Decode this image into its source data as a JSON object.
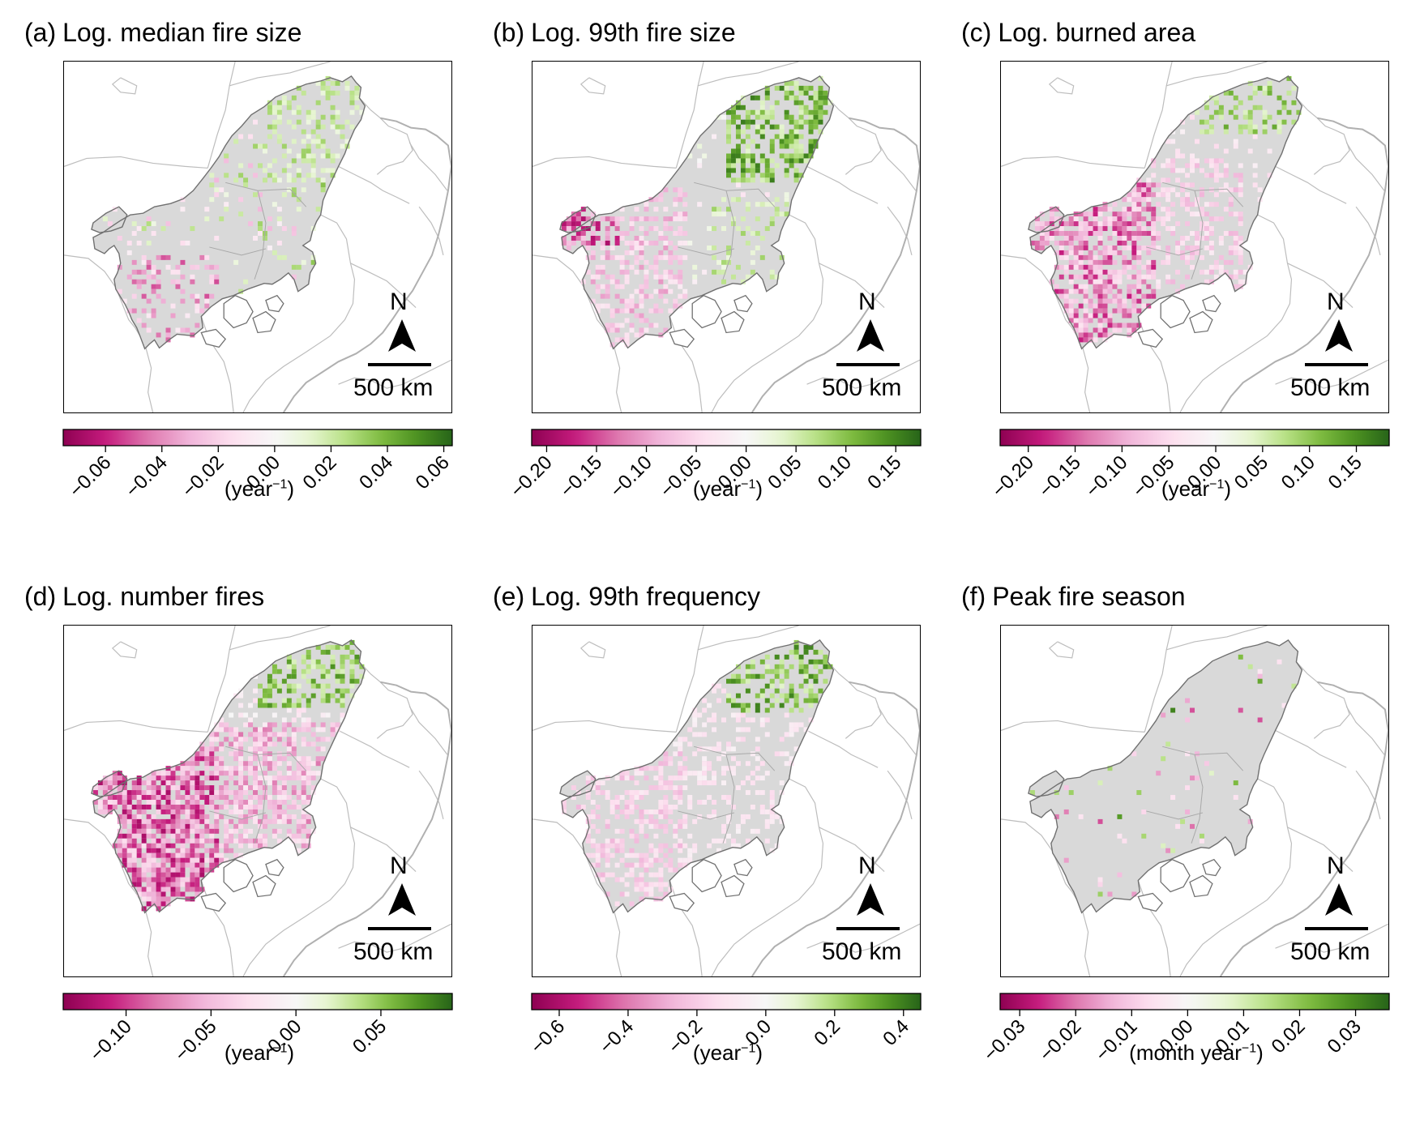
{
  "figure": {
    "colormap": [
      "#8e0152",
      "#c51b7d",
      "#de77ae",
      "#f1b6da",
      "#fde0ef",
      "#f7f7f7",
      "#e6f5d0",
      "#b8e186",
      "#7fbc41",
      "#4d9221",
      "#276419"
    ],
    "land_fill": "#d9d9d9",
    "border_color": "#bdbdbd",
    "outline_color": "#707070",
    "panels": [
      {
        "tag": "(a)",
        "title": "Log. median fire size",
        "scale_label": "500 km",
        "north_label": "N",
        "unit": "(year",
        "unit_sup": "−1",
        "unit_close": ")",
        "colorbar": {
          "min": -0.075,
          "max": 0.063,
          "ticks": [
            -0.06,
            -0.04,
            -0.02,
            0.0,
            0.02,
            0.04,
            0.06
          ],
          "tick_labels": [
            "−0.06",
            "−0.04",
            "−0.02",
            "0.00",
            "0.02",
            "0.04",
            "0.06"
          ]
        },
        "pattern": "mixed_green_north"
      },
      {
        "tag": "(b)",
        "title": "Log. 99th fire size",
        "scale_label": "500 km",
        "north_label": "N",
        "unit": "(year",
        "unit_sup": "−1",
        "unit_close": ")",
        "colorbar": {
          "min": -0.215,
          "max": 0.175,
          "ticks": [
            -0.2,
            -0.15,
            -0.1,
            -0.05,
            0.0,
            0.05,
            0.1,
            0.15
          ],
          "tick_labels": [
            "−0.20",
            "−0.15",
            "−0.10",
            "−0.05",
            "0.00",
            "0.05",
            "0.10",
            "0.15"
          ]
        },
        "pattern": "pink_south_green_north"
      },
      {
        "tag": "(c)",
        "title": "Log. burned area",
        "scale_label": "500 km",
        "north_label": "N",
        "unit": "(year",
        "unit_sup": "−1",
        "unit_close": ")",
        "colorbar": {
          "min": -0.23,
          "max": 0.185,
          "ticks": [
            -0.2,
            -0.15,
            -0.1,
            -0.05,
            0.0,
            0.05,
            0.1,
            0.15
          ],
          "tick_labels": [
            "−0.20",
            "−0.15",
            "−0.10",
            "−0.05",
            "0.00",
            "0.05",
            "0.10",
            "0.15"
          ]
        },
        "pattern": "pink_west"
      },
      {
        "tag": "(d)",
        "title": "Log. number fires",
        "scale_label": "500 km",
        "north_label": "N",
        "unit": "(year",
        "unit_sup": "−1",
        "unit_close": ")",
        "colorbar": {
          "min": -0.137,
          "max": 0.092,
          "ticks": [
            -0.1,
            -0.05,
            0.0,
            0.05
          ],
          "tick_labels": [
            "−0.10",
            "−0.05",
            "0.00",
            "0.05"
          ]
        },
        "pattern": "strong_pink"
      },
      {
        "tag": "(e)",
        "title": "Log. 99th frequency",
        "scale_label": "500 km",
        "north_label": "N",
        "unit": "(year",
        "unit_sup": "−1",
        "unit_close": ")",
        "colorbar": {
          "min": -0.68,
          "max": 0.45,
          "ticks": [
            -0.6,
            -0.4,
            -0.2,
            0.0,
            0.2,
            0.4
          ],
          "tick_labels": [
            "−0.6",
            "−0.4",
            "−0.2",
            "0.0",
            "0.2",
            "0.4"
          ]
        },
        "pattern": "light_pink_green_north"
      },
      {
        "tag": "(f)",
        "title": "Peak fire season",
        "scale_label": "500 km",
        "north_label": "N",
        "unit": "(month year",
        "unit_sup": "−1",
        "unit_close": ")",
        "colorbar": {
          "min": -0.0335,
          "max": 0.036,
          "ticks": [
            -0.03,
            -0.02,
            -0.01,
            0.0,
            0.01,
            0.02,
            0.03
          ],
          "tick_labels": [
            "−0.03",
            "−0.02",
            "−0.01",
            "0.00",
            "0.01",
            "0.02",
            "0.03"
          ]
        },
        "pattern": "sparse"
      }
    ]
  }
}
